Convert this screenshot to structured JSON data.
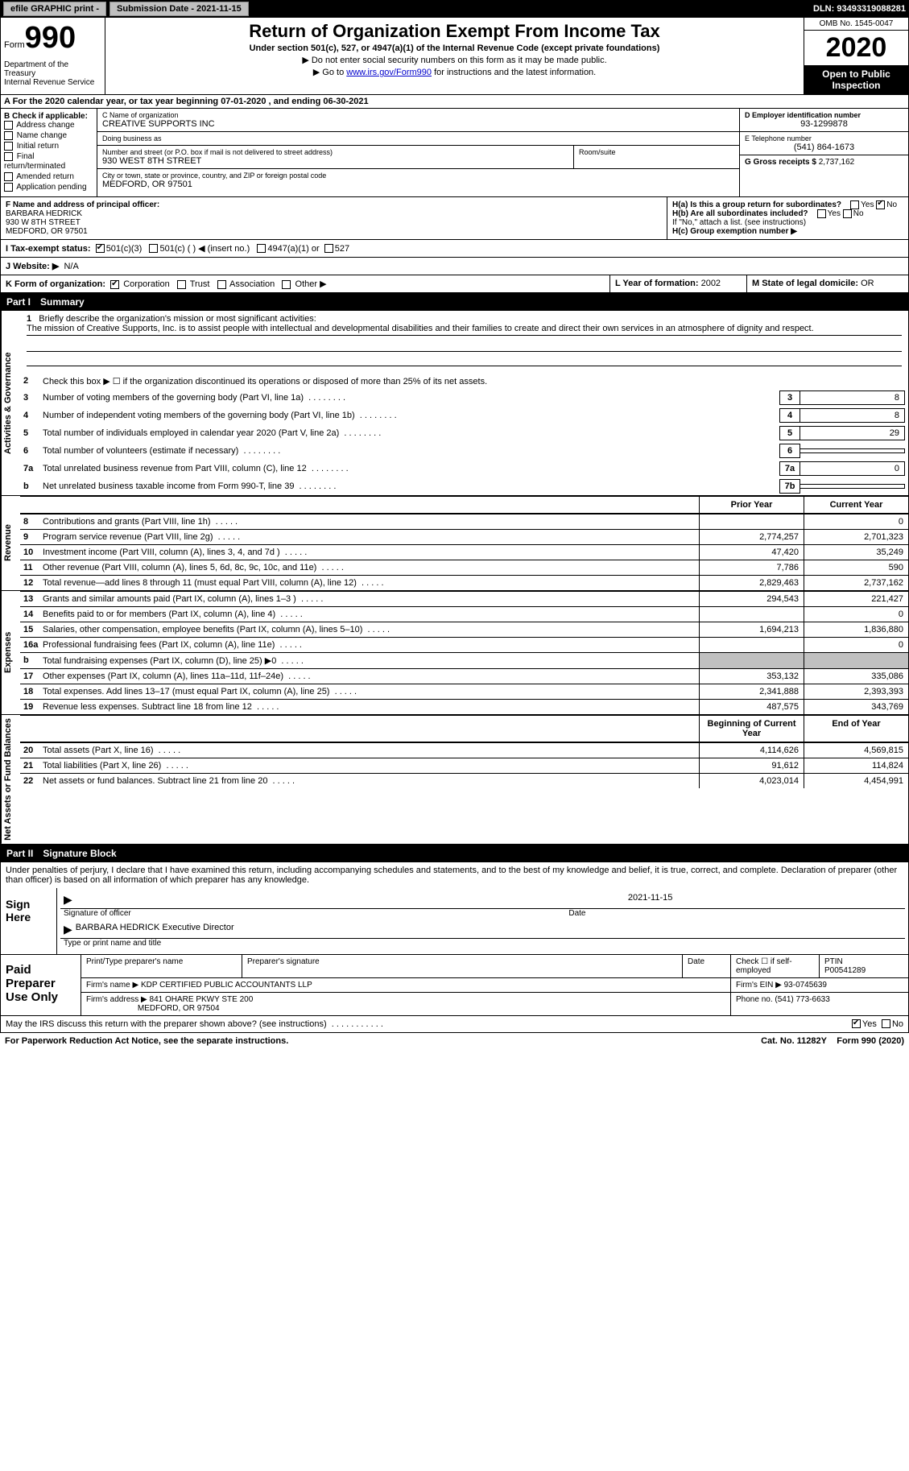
{
  "top_bar": {
    "efile": "efile GRAPHIC print - ",
    "submission": "Submission Date - 2021-11-15",
    "dln": "DLN: 93493319088281"
  },
  "header": {
    "form_label": "Form",
    "form_number": "990",
    "dept": "Department of the Treasury\nInternal Revenue Service",
    "title": "Return of Organization Exempt From Income Tax",
    "subtitle": "Under section 501(c), 527, or 4947(a)(1) of the Internal Revenue Code (except private foundations)",
    "note1": "▶ Do not enter social security numbers on this form as it may be made public.",
    "note2_pre": "▶ Go to ",
    "note2_link": "www.irs.gov/Form990",
    "note2_post": " for instructions and the latest information.",
    "omb": "OMB No. 1545-0047",
    "year": "2020",
    "inspection": "Open to Public Inspection"
  },
  "row_a": "A For the 2020 calendar year, or tax year beginning 07-01-2020    , and ending 06-30-2021",
  "col_b": {
    "label": "B Check if applicable:",
    "items": [
      "Address change",
      "Name change",
      "Initial return",
      "Final return/terminated",
      "Amended return",
      "Application pending"
    ]
  },
  "col_c": {
    "name_label": "C Name of organization",
    "name": "CREATIVE SUPPORTS INC",
    "dba_label": "Doing business as",
    "dba": "",
    "addr_label": "Number and street (or P.O. box if mail is not delivered to street address)",
    "addr": "930 WEST 8TH STREET",
    "room_label": "Room/suite",
    "room": "",
    "city_label": "City or town, state or province, country, and ZIP or foreign postal code",
    "city": "MEDFORD, OR  97501"
  },
  "col_d": {
    "ein_label": "D Employer identification number",
    "ein": "93-1299878",
    "phone_label": "E Telephone number",
    "phone": "(541) 864-1673",
    "gross_label": "G Gross receipts $",
    "gross": "2,737,162"
  },
  "row_f": {
    "label": "F Name and address of principal officer:",
    "name": "BARBARA HEDRICK",
    "addr": "930 W 8TH STREET",
    "city": "MEDFORD, OR  97501"
  },
  "row_h": {
    "ha_label": "H(a)  Is this a group return for subordinates?",
    "hb_label": "H(b)  Are all subordinates included?",
    "hb_note": "If \"No,\" attach a list. (see instructions)",
    "hc_label": "H(c)  Group exemption number ▶"
  },
  "row_i": {
    "label": "I  Tax-exempt status:",
    "opts": [
      "501(c)(3)",
      "501(c) (  ) ◀ (insert no.)",
      "4947(a)(1) or",
      "527"
    ]
  },
  "row_j": {
    "label": "J  Website: ▶",
    "val": "N/A"
  },
  "row_k": {
    "label": "K Form of organization:",
    "opts": [
      "Corporation",
      "Trust",
      "Association",
      "Other ▶"
    ],
    "l_label": "L Year of formation:",
    "l_val": "2002",
    "m_label": "M State of legal domicile:",
    "m_val": "OR"
  },
  "parts": {
    "p1": {
      "num": "Part I",
      "title": "Summary"
    },
    "p2": {
      "num": "Part II",
      "title": "Signature Block"
    }
  },
  "sides": {
    "s1": "Activities & Governance",
    "s2": "Revenue",
    "s3": "Expenses",
    "s4": "Net Assets or Fund Balances"
  },
  "mission": {
    "q": "Briefly describe the organization's mission or most significant activities:",
    "text": "The mission of Creative Supports, Inc. is to assist people with intellectual and developmental disabilities and their families to create and direct their own services in an atmosphere of dignity and respect."
  },
  "lines_gov": [
    {
      "n": "2",
      "t": "Check this box ▶ ☐  if the organization discontinued its operations or disposed of more than 25% of its net assets."
    },
    {
      "n": "3",
      "t": "Number of voting members of the governing body (Part VI, line 1a)",
      "box": "3",
      "v": "8"
    },
    {
      "n": "4",
      "t": "Number of independent voting members of the governing body (Part VI, line 1b)",
      "box": "4",
      "v": "8"
    },
    {
      "n": "5",
      "t": "Total number of individuals employed in calendar year 2020 (Part V, line 2a)",
      "box": "5",
      "v": "29"
    },
    {
      "n": "6",
      "t": "Total number of volunteers (estimate if necessary)",
      "box": "6",
      "v": ""
    },
    {
      "n": "7a",
      "t": "Total unrelated business revenue from Part VIII, column (C), line 12",
      "box": "7a",
      "v": "0"
    },
    {
      "n": "b",
      "t": "Net unrelated business taxable income from Form 990-T, line 39",
      "box": "7b",
      "v": ""
    }
  ],
  "col_hdr": {
    "prior": "Prior Year",
    "current": "Current Year"
  },
  "lines_rev": [
    {
      "n": "8",
      "t": "Contributions and grants (Part VIII, line 1h)",
      "c1": "",
      "c2": "0"
    },
    {
      "n": "9",
      "t": "Program service revenue (Part VIII, line 2g)",
      "c1": "2,774,257",
      "c2": "2,701,323"
    },
    {
      "n": "10",
      "t": "Investment income (Part VIII, column (A), lines 3, 4, and 7d )",
      "c1": "47,420",
      "c2": "35,249"
    },
    {
      "n": "11",
      "t": "Other revenue (Part VIII, column (A), lines 5, 6d, 8c, 9c, 10c, and 11e)",
      "c1": "7,786",
      "c2": "590"
    },
    {
      "n": "12",
      "t": "Total revenue—add lines 8 through 11 (must equal Part VIII, column (A), line 12)",
      "c1": "2,829,463",
      "c2": "2,737,162"
    }
  ],
  "lines_exp": [
    {
      "n": "13",
      "t": "Grants and similar amounts paid (Part IX, column (A), lines 1–3 )",
      "c1": "294,543",
      "c2": "221,427"
    },
    {
      "n": "14",
      "t": "Benefits paid to or for members (Part IX, column (A), line 4)",
      "c1": "",
      "c2": "0"
    },
    {
      "n": "15",
      "t": "Salaries, other compensation, employee benefits (Part IX, column (A), lines 5–10)",
      "c1": "1,694,213",
      "c2": "1,836,880"
    },
    {
      "n": "16a",
      "t": "Professional fundraising fees (Part IX, column (A), line 11e)",
      "c1": "",
      "c2": "0"
    },
    {
      "n": "b",
      "t": "Total fundraising expenses (Part IX, column (D), line 25) ▶0",
      "c1": "grey",
      "c2": "grey"
    },
    {
      "n": "17",
      "t": "Other expenses (Part IX, column (A), lines 11a–11d, 11f–24e)",
      "c1": "353,132",
      "c2": "335,086"
    },
    {
      "n": "18",
      "t": "Total expenses. Add lines 13–17 (must equal Part IX, column (A), line 25)",
      "c1": "2,341,888",
      "c2": "2,393,393"
    },
    {
      "n": "19",
      "t": "Revenue less expenses. Subtract line 18 from line 12",
      "c1": "487,575",
      "c2": "343,769"
    }
  ],
  "col_hdr2": {
    "begin": "Beginning of Current Year",
    "end": "End of Year"
  },
  "lines_net": [
    {
      "n": "20",
      "t": "Total assets (Part X, line 16)",
      "c1": "4,114,626",
      "c2": "4,569,815"
    },
    {
      "n": "21",
      "t": "Total liabilities (Part X, line 26)",
      "c1": "91,612",
      "c2": "114,824"
    },
    {
      "n": "22",
      "t": "Net assets or fund balances. Subtract line 21 from line 20",
      "c1": "4,023,014",
      "c2": "4,454,991"
    }
  ],
  "signature": {
    "perjury": "Under penalties of perjury, I declare that I have examined this return, including accompanying schedules and statements, and to the best of my knowledge and belief, it is true, correct, and complete. Declaration of preparer (other than officer) is based on all information of which preparer has any knowledge.",
    "sign_here": "Sign Here",
    "sig_officer_label": "Signature of officer",
    "date_label": "Date",
    "date": "2021-11-15",
    "name_title": "BARBARA HEDRICK Executive Director",
    "name_title_label": "Type or print name and title"
  },
  "preparer": {
    "label": "Paid Preparer Use Only",
    "h_name": "Print/Type preparer's name",
    "h_sig": "Preparer's signature",
    "h_date": "Date",
    "h_check": "Check ☐ if self-employed",
    "h_ptin": "PTIN",
    "ptin": "P00541289",
    "firm_label": "Firm's name    ▶",
    "firm": "KDP CERTIFIED PUBLIC ACCOUNTANTS LLP",
    "ein_label": "Firm's EIN ▶",
    "ein": "93-0745639",
    "addr_label": "Firm's address ▶",
    "addr": "841 OHARE PKWY STE 200",
    "addr2": "MEDFORD, OR  97504",
    "phone_label": "Phone no.",
    "phone": "(541) 773-6633"
  },
  "footer": {
    "discuss": "May the IRS discuss this return with the preparer shown above? (see instructions)",
    "paperwork": "For Paperwork Reduction Act Notice, see the separate instructions.",
    "cat": "Cat. No. 11282Y",
    "form": "Form 990 (2020)"
  }
}
